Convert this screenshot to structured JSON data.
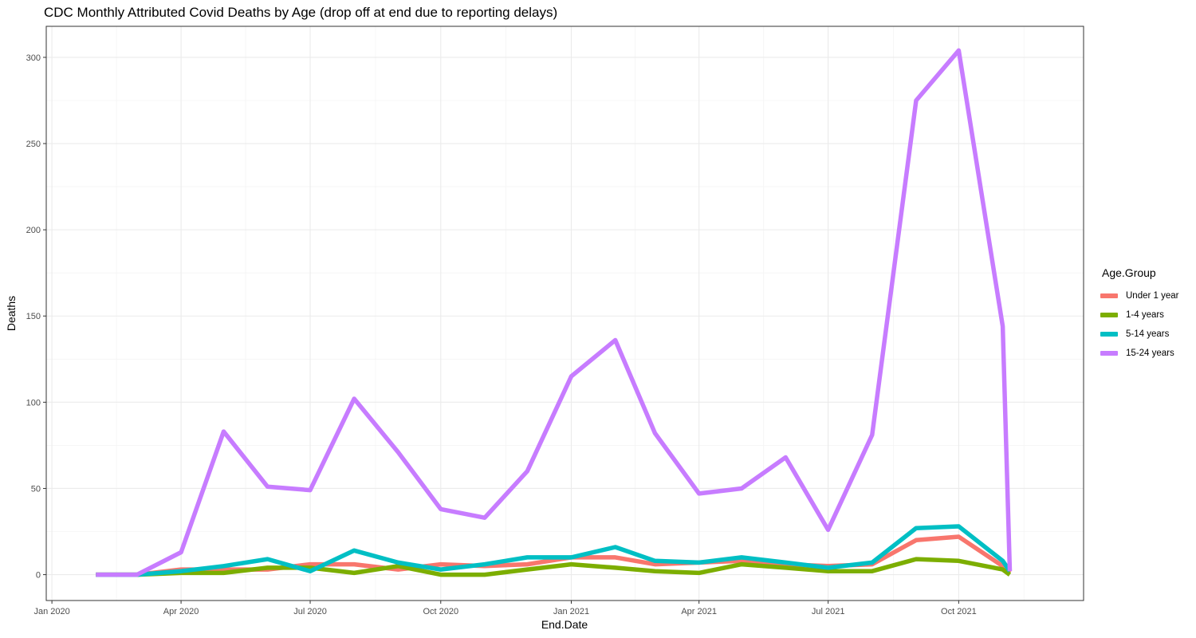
{
  "title": "CDC Monthly Attributed Covid Deaths by Age (drop off at end due to reporting delays)",
  "chart_data": {
    "type": "line",
    "xlabel": "End.Date",
    "ylabel": "Deaths",
    "x_ticks": [
      "Jan 2020",
      "Apr 2020",
      "Jul 2020",
      "Oct 2020",
      "Jan 2021",
      "Apr 2021",
      "Jul 2021",
      "Oct 2021"
    ],
    "y_ticks": [
      0,
      50,
      100,
      150,
      200,
      250,
      300
    ],
    "xlim": [
      "2019-12-28",
      "2021-12-28"
    ],
    "ylim": [
      -15,
      318
    ],
    "grid": true,
    "legend": {
      "title": "Age.Group",
      "position": "right"
    },
    "x": [
      "2020-02-01",
      "2020-03-01",
      "2020-04-01",
      "2020-05-01",
      "2020-06-01",
      "2020-07-01",
      "2020-08-01",
      "2020-09-01",
      "2020-10-01",
      "2020-11-01",
      "2020-12-01",
      "2021-01-01",
      "2021-02-01",
      "2021-03-01",
      "2021-04-01",
      "2021-05-01",
      "2021-06-01",
      "2021-07-01",
      "2021-08-01",
      "2021-09-01",
      "2021-10-01",
      "2021-11-01",
      "2021-11-06"
    ],
    "series": [
      {
        "name": "Under 1 year",
        "color": "#F8766D",
        "values": [
          0,
          0,
          3,
          3,
          3,
          6,
          6,
          3,
          6,
          5,
          6,
          10,
          10,
          6,
          7,
          8,
          6,
          5,
          6,
          20,
          22,
          5,
          1
        ]
      },
      {
        "name": "1-4 years",
        "color": "#7CAE00",
        "values": [
          0,
          0,
          1,
          1,
          4,
          4,
          1,
          5,
          0,
          0,
          3,
          6,
          4,
          2,
          1,
          6,
          4,
          2,
          2,
          9,
          8,
          3,
          0
        ]
      },
      {
        "name": "5-14 years",
        "color": "#00BFC4",
        "values": [
          0,
          0,
          2,
          5,
          9,
          2,
          14,
          7,
          3,
          6,
          10,
          10,
          16,
          8,
          7,
          10,
          7,
          4,
          7,
          27,
          28,
          8,
          2
        ]
      },
      {
        "name": "15-24 years",
        "color": "#C77CFF",
        "values": [
          0,
          0,
          13,
          83,
          51,
          49,
          102,
          71,
          38,
          33,
          60,
          115,
          136,
          82,
          47,
          50,
          68,
          26,
          81,
          275,
          304,
          144,
          2
        ]
      }
    ]
  }
}
